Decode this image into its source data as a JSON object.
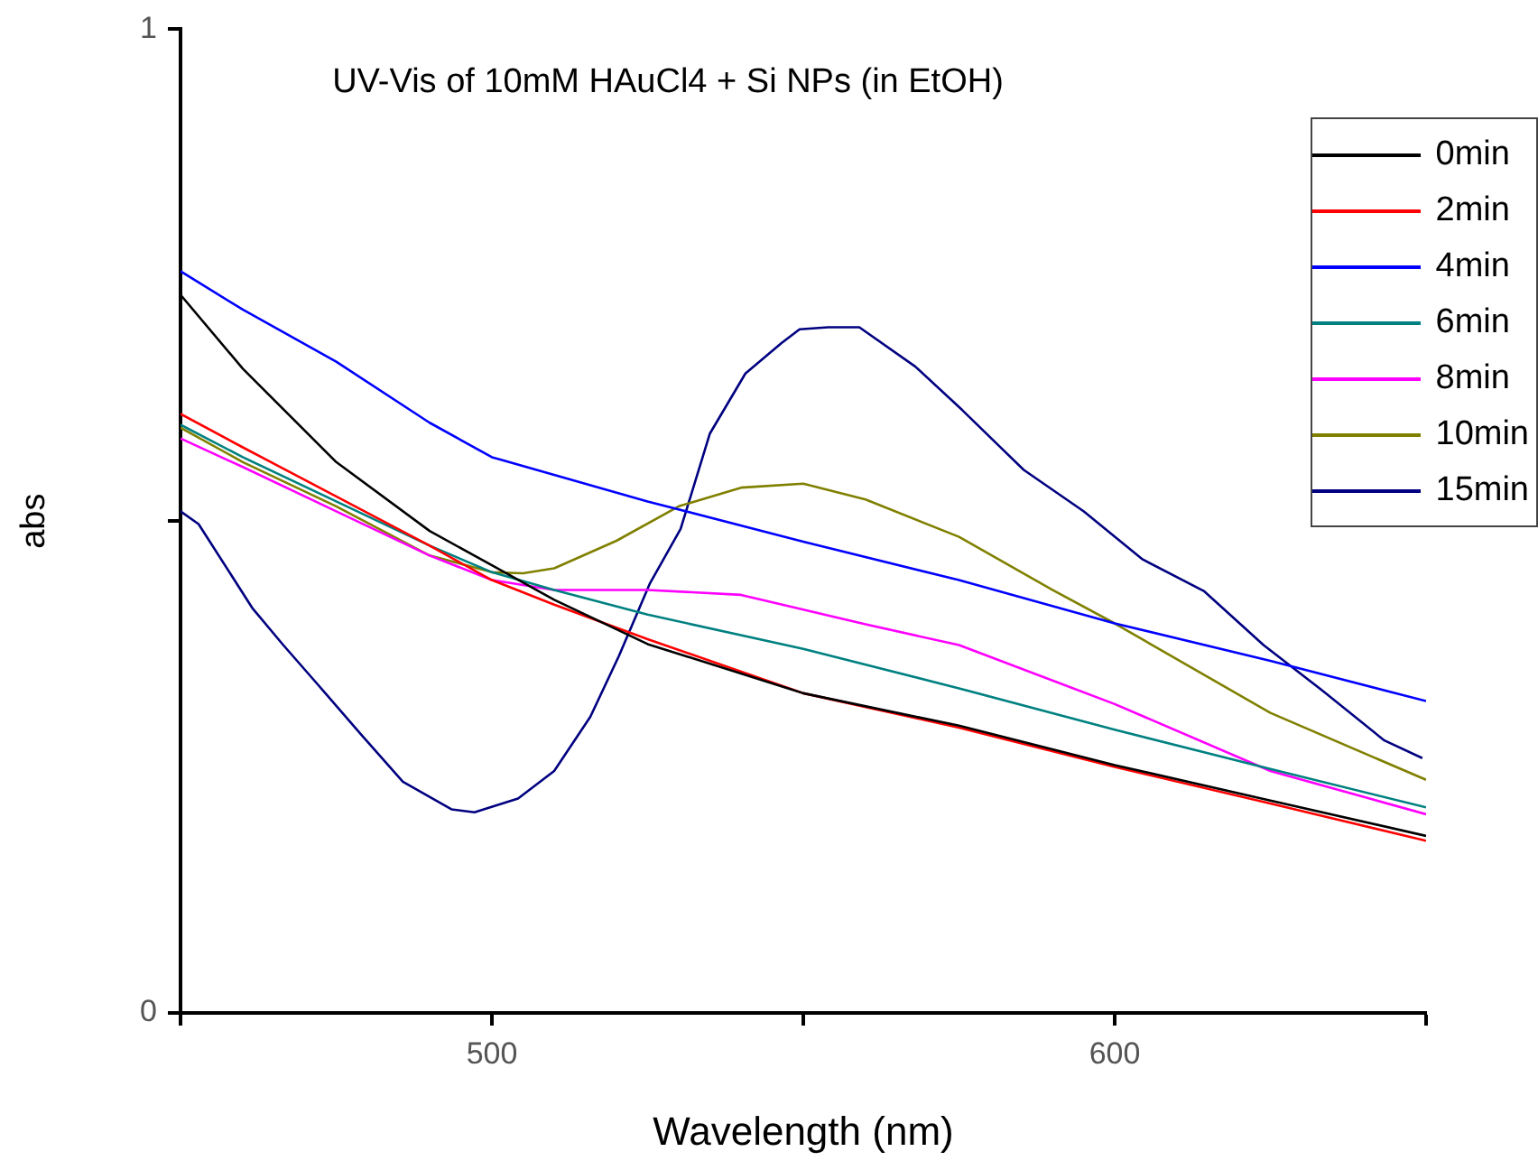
{
  "chart_data": {
    "type": "line",
    "title": "UV-Vis of 10mM HAuCl4 + Si NPs (in EtOH)",
    "xlabel": "Wavelength (nm)",
    "ylabel": "abs",
    "xlim": [
      450,
      650
    ],
    "xticks": [
      {
        "value": 450,
        "label": null
      },
      500,
      {
        "value": 550,
        "label": null
      },
      600,
      {
        "value": 650,
        "label": null
      }
    ],
    "ylim": [
      0,
      1
    ],
    "yticks": [
      0,
      {
        "value": 0.5,
        "label": null
      },
      1
    ],
    "grid": false,
    "legend": "top right",
    "series": [
      {
        "name": "0min",
        "color": "#000000",
        "x": [
          450,
          460,
          475,
          490,
          500,
          510,
          525,
          550,
          575,
          600,
          625,
          650
        ],
        "values": [
          0.73,
          0.655,
          0.56,
          0.49,
          0.455,
          0.42,
          0.375,
          0.325,
          0.292,
          0.252,
          0.216,
          0.18
        ]
      },
      {
        "name": "2min",
        "color": "#ff0000",
        "x": [
          450,
          460,
          475,
          490,
          500,
          510,
          525,
          550,
          575,
          600,
          625,
          650
        ],
        "values": [
          0.609,
          0.575,
          0.525,
          0.475,
          0.44,
          0.415,
          0.38,
          0.325,
          0.29,
          0.25,
          0.213,
          0.175
        ]
      },
      {
        "name": "4min",
        "color": "#0000ff",
        "x": [
          450,
          460,
          475,
          490,
          500,
          525,
          550,
          575,
          600,
          625,
          650
        ],
        "values": [
          0.754,
          0.715,
          0.662,
          0.6,
          0.565,
          0.52,
          0.479,
          0.44,
          0.396,
          0.358,
          0.317
        ]
      },
      {
        "name": "6min",
        "color": "#008080",
        "x": [
          450,
          460,
          475,
          490,
          500,
          510,
          525,
          550,
          575,
          600,
          625,
          650
        ],
        "values": [
          0.598,
          0.565,
          0.52,
          0.475,
          0.448,
          0.43,
          0.405,
          0.37,
          0.33,
          0.288,
          0.248,
          0.209
        ]
      },
      {
        "name": "8min",
        "color": "#ff00ff",
        "x": [
          450,
          460,
          475,
          490,
          500,
          510,
          525,
          540,
          550,
          560,
          575,
          600,
          625,
          650
        ],
        "values": [
          0.584,
          0.555,
          0.51,
          0.465,
          0.44,
          0.43,
          0.43,
          0.425,
          0.41,
          0.395,
          0.374,
          0.314,
          0.246,
          0.202
        ]
      },
      {
        "name": "10min",
        "color": "#808000",
        "x": [
          450,
          460,
          475,
          490,
          500,
          505,
          510,
          520,
          530,
          540,
          550,
          560,
          575,
          590,
          600,
          625,
          650
        ],
        "values": [
          0.595,
          0.56,
          0.515,
          0.465,
          0.448,
          0.447,
          0.452,
          0.48,
          0.515,
          0.534,
          0.538,
          0.522,
          0.484,
          0.43,
          0.396,
          0.305,
          0.237
        ]
      },
      {
        "name": "15min",
        "color": "#000080",
        "x": [
          450,
          452.9,
          461.6,
          466.5,
          472.3,
          479,
          485.7,
          493.5,
          497.2,
          504.2,
          510,
          515.8,
          520.4,
          525.4,
          530.3,
          535,
          540.7,
          546.5,
          549.4,
          554,
          559,
          568,
          575.5,
          585.4,
          595,
          604.5,
          614.3,
          623.9,
          633.5,
          643.3,
          649.4
        ],
        "values": [
          0.51,
          0.497,
          0.411,
          0.374,
          0.332,
          0.283,
          0.235,
          0.207,
          0.204,
          0.218,
          0.246,
          0.301,
          0.363,
          0.437,
          0.492,
          0.589,
          0.65,
          0.681,
          0.695,
          0.697,
          0.697,
          0.657,
          0.613,
          0.552,
          0.51,
          0.461,
          0.429,
          0.374,
          0.327,
          0.277,
          0.259
        ]
      }
    ]
  }
}
